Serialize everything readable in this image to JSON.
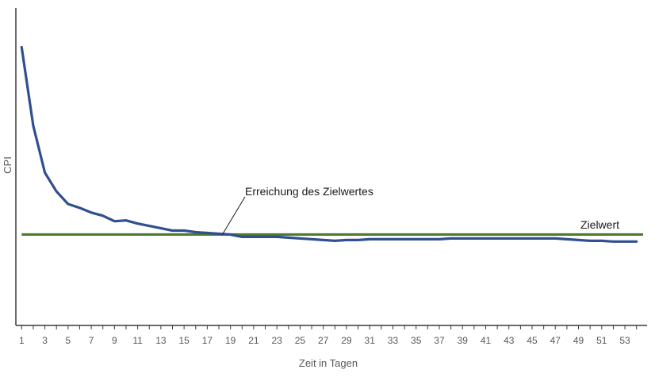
{
  "chart_data": {
    "type": "line",
    "title": "",
    "xlabel": "Zeit in Tagen",
    "ylabel": "CPI",
    "x": [
      1,
      2,
      3,
      4,
      5,
      6,
      7,
      8,
      9,
      10,
      11,
      12,
      13,
      14,
      15,
      16,
      17,
      18,
      19,
      20,
      21,
      22,
      23,
      24,
      25,
      26,
      27,
      28,
      29,
      30,
      31,
      32,
      33,
      34,
      35,
      36,
      37,
      38,
      39,
      40,
      41,
      42,
      43,
      44,
      45,
      46,
      47,
      48,
      49,
      50,
      51,
      52,
      53,
      54
    ],
    "xticks": [
      "1",
      "3",
      "5",
      "7",
      "9",
      "11",
      "13",
      "15",
      "17",
      "19",
      "21",
      "23",
      "25",
      "27",
      "29",
      "31",
      "33",
      "35",
      "37",
      "39",
      "41",
      "43",
      "45",
      "47",
      "49",
      "51",
      "53"
    ],
    "xlim": [
      0.5,
      54.5
    ],
    "ylim": [
      0,
      1
    ],
    "y_tick_labels_shown": false,
    "grid": false,
    "series": [
      {
        "values": [
          0.8987,
          0.6456,
          0.4937,
          0.4329,
          0.3924,
          0.3797,
          0.3646,
          0.3544,
          0.3367,
          0.3392,
          0.3291,
          0.3215,
          0.3139,
          0.3063,
          0.3063,
          0.3013,
          0.2987,
          0.2962,
          0.2937,
          0.2861,
          0.2861,
          0.2861,
          0.2861,
          0.2835,
          0.281,
          0.2785,
          0.2759,
          0.2734,
          0.2759,
          0.2759,
          0.2785,
          0.2785,
          0.2785,
          0.2785,
          0.2785,
          0.2785,
          0.2785,
          0.281,
          0.281,
          0.281,
          0.281,
          0.281,
          0.281,
          0.281,
          0.281,
          0.281,
          0.281,
          0.2785,
          0.2759,
          0.2734,
          0.2734,
          0.2709,
          0.2709,
          0.2709
        ],
        "color": "#2F4F8F"
      },
      {
        "name": "Zielwert",
        "constant": 0.2937,
        "color": "#4E7A2B"
      }
    ],
    "annotations": [
      {
        "text": "Erreichung des Zielwertes",
        "pointer_x": 18.3,
        "pointer_y": 0.2937
      },
      {
        "text": "Zielwert"
      }
    ]
  }
}
